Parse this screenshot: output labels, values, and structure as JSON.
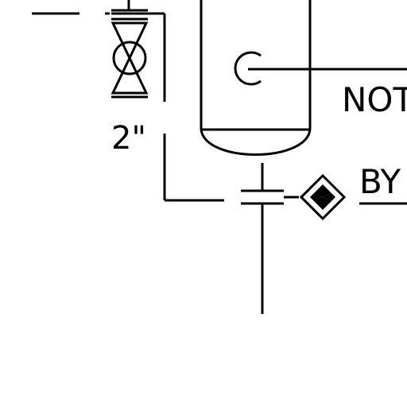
{
  "labels": {
    "pipe_size": "2\"",
    "note_partial": "NOT",
    "bypass_partial": "BY"
  },
  "icons": {
    "gate_valve": "gate-valve-icon",
    "instrument_bubble": "instrument-bubble-icon",
    "diamond_trap": "diamond-trap-icon",
    "vessel": "vessel-icon"
  },
  "colors": {
    "line": "#000000",
    "background": "#ffffff"
  }
}
